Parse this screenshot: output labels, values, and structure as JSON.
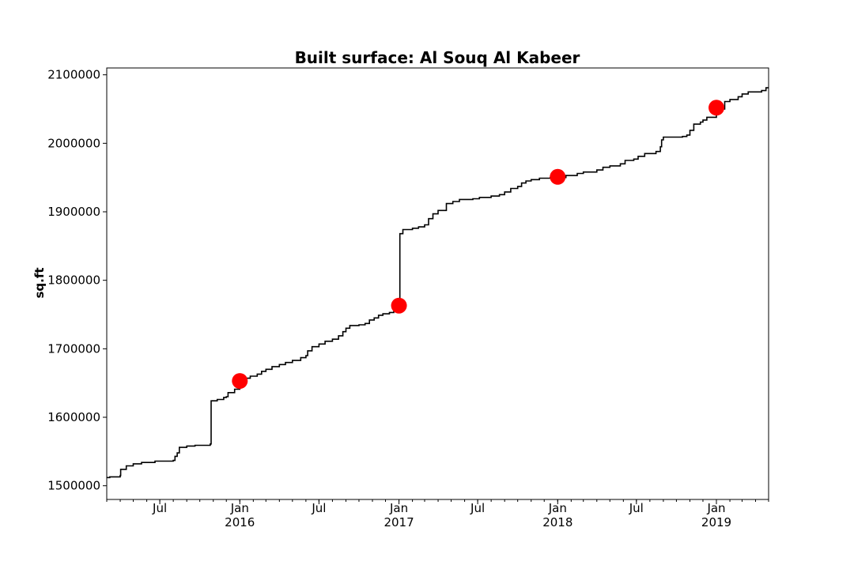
{
  "chart_data": {
    "type": "line",
    "title": "Built surface: Al Souq Al Kabeer",
    "xlabel": "",
    "ylabel": "sq.ft",
    "xlim": [
      "2015-03-01",
      "2019-05-01"
    ],
    "ylim": [
      1480000,
      2110000
    ],
    "y_ticks": [
      1500000,
      1600000,
      1700000,
      1800000,
      1900000,
      2000000,
      2100000
    ],
    "y_tick_labels": [
      "1500000",
      "1600000",
      "1700000",
      "1800000",
      "1900000",
      "2000000",
      "2100000"
    ],
    "x_ticks": [
      {
        "date": "2015-07-01",
        "label": "Jul",
        "year": ""
      },
      {
        "date": "2016-01-01",
        "label": "Jan",
        "year": "2016"
      },
      {
        "date": "2016-07-01",
        "label": "Jul",
        "year": ""
      },
      {
        "date": "2017-01-01",
        "label": "Jan",
        "year": "2017"
      },
      {
        "date": "2017-07-01",
        "label": "Jul",
        "year": ""
      },
      {
        "date": "2018-01-01",
        "label": "Jan",
        "year": "2018"
      },
      {
        "date": "2018-07-01",
        "label": "Jul",
        "year": ""
      },
      {
        "date": "2019-01-01",
        "label": "Jan",
        "year": "2019"
      }
    ],
    "grid": false,
    "series": [
      {
        "color": "#000000",
        "style": "step-line",
        "points": [
          [
            "2015-03-01",
            1512000
          ],
          [
            "2015-03-08",
            1513000
          ],
          [
            "2015-04-01",
            1515000
          ],
          [
            "2015-04-02",
            1524000
          ],
          [
            "2015-04-15",
            1529000
          ],
          [
            "2015-05-01",
            1532000
          ],
          [
            "2015-05-20",
            1534000
          ],
          [
            "2015-06-20",
            1536000
          ],
          [
            "2015-08-01",
            1537000
          ],
          [
            "2015-08-05",
            1543000
          ],
          [
            "2015-08-10",
            1548000
          ],
          [
            "2015-08-15",
            1556000
          ],
          [
            "2015-09-01",
            1558000
          ],
          [
            "2015-09-20",
            1559000
          ],
          [
            "2015-10-25",
            1561000
          ],
          [
            "2015-10-27",
            1624000
          ],
          [
            "2015-11-10",
            1626000
          ],
          [
            "2015-11-25",
            1629000
          ],
          [
            "2015-12-01",
            1630000
          ],
          [
            "2015-12-05",
            1636000
          ],
          [
            "2015-12-20",
            1641000
          ],
          [
            "2016-01-01",
            1653000
          ],
          [
            "2016-01-10",
            1657000
          ],
          [
            "2016-01-25",
            1660000
          ],
          [
            "2016-02-10",
            1663000
          ],
          [
            "2016-02-20",
            1667000
          ],
          [
            "2016-03-01",
            1670000
          ],
          [
            "2016-03-15",
            1674000
          ],
          [
            "2016-04-01",
            1677000
          ],
          [
            "2016-04-15",
            1680000
          ],
          [
            "2016-05-01",
            1683000
          ],
          [
            "2016-05-20",
            1687000
          ],
          [
            "2016-06-01",
            1690000
          ],
          [
            "2016-06-05",
            1697000
          ],
          [
            "2016-06-15",
            1703000
          ],
          [
            "2016-07-01",
            1707000
          ],
          [
            "2016-07-15",
            1711000
          ],
          [
            "2016-08-01",
            1714000
          ],
          [
            "2016-08-15",
            1719000
          ],
          [
            "2016-08-25",
            1725000
          ],
          [
            "2016-09-01",
            1730000
          ],
          [
            "2016-09-10",
            1734000
          ],
          [
            "2016-10-01",
            1735000
          ],
          [
            "2016-10-15",
            1737000
          ],
          [
            "2016-10-25",
            1742000
          ],
          [
            "2016-11-05",
            1745000
          ],
          [
            "2016-11-15",
            1749000
          ],
          [
            "2016-11-25",
            1751000
          ],
          [
            "2016-12-10",
            1753000
          ],
          [
            "2016-12-20",
            1757000
          ],
          [
            "2017-01-01",
            1761000
          ],
          [
            "2017-01-03",
            1868000
          ],
          [
            "2017-01-10",
            1874000
          ],
          [
            "2017-02-01",
            1876000
          ],
          [
            "2017-02-15",
            1878000
          ],
          [
            "2017-03-01",
            1881000
          ],
          [
            "2017-03-10",
            1890000
          ],
          [
            "2017-03-20",
            1897000
          ],
          [
            "2017-04-01",
            1902000
          ],
          [
            "2017-04-20",
            1912000
          ],
          [
            "2017-05-05",
            1915000
          ],
          [
            "2017-05-20",
            1918000
          ],
          [
            "2017-06-20",
            1919000
          ],
          [
            "2017-07-05",
            1921000
          ],
          [
            "2017-08-01",
            1923000
          ],
          [
            "2017-08-20",
            1925000
          ],
          [
            "2017-09-01",
            1929000
          ],
          [
            "2017-09-15",
            1934000
          ],
          [
            "2017-10-01",
            1937000
          ],
          [
            "2017-10-10",
            1942000
          ],
          [
            "2017-10-20",
            1945000
          ],
          [
            "2017-11-01",
            1947000
          ],
          [
            "2017-11-20",
            1949000
          ],
          [
            "2017-12-15",
            1950000
          ],
          [
            "2018-01-01",
            1950000
          ],
          [
            "2018-01-20",
            1953000
          ],
          [
            "2018-02-15",
            1956000
          ],
          [
            "2018-03-01",
            1958000
          ],
          [
            "2018-04-01",
            1961000
          ],
          [
            "2018-04-15",
            1965000
          ],
          [
            "2018-05-01",
            1967000
          ],
          [
            "2018-05-25",
            1970000
          ],
          [
            "2018-06-05",
            1975000
          ],
          [
            "2018-06-25",
            1977000
          ],
          [
            "2018-07-05",
            1981000
          ],
          [
            "2018-07-20",
            1985000
          ],
          [
            "2018-08-15",
            1988000
          ],
          [
            "2018-08-25",
            1995000
          ],
          [
            "2018-08-28",
            2005000
          ],
          [
            "2018-09-01",
            2009000
          ],
          [
            "2018-10-01",
            2009000
          ],
          [
            "2018-10-15",
            2010000
          ],
          [
            "2018-10-25",
            2012000
          ],
          [
            "2018-11-01",
            2019000
          ],
          [
            "2018-11-10",
            2028000
          ],
          [
            "2018-11-25",
            2031000
          ],
          [
            "2018-12-01",
            2034000
          ],
          [
            "2018-12-10",
            2038000
          ],
          [
            "2019-01-01",
            2050000
          ],
          [
            "2019-01-20",
            2061000
          ],
          [
            "2019-02-01",
            2064000
          ],
          [
            "2019-02-20",
            2068000
          ],
          [
            "2019-03-01",
            2072000
          ],
          [
            "2019-03-15",
            2075000
          ],
          [
            "2019-04-15",
            2077000
          ],
          [
            "2019-04-25",
            2081000
          ],
          [
            "2019-05-01",
            2081000
          ]
        ]
      },
      {
        "color": "#ff0000",
        "style": "markers",
        "points": [
          [
            "2016-01-01",
            1653000
          ],
          [
            "2017-01-01",
            1763000
          ],
          [
            "2018-01-01",
            1951000
          ],
          [
            "2019-01-01",
            2052000
          ]
        ]
      }
    ]
  }
}
